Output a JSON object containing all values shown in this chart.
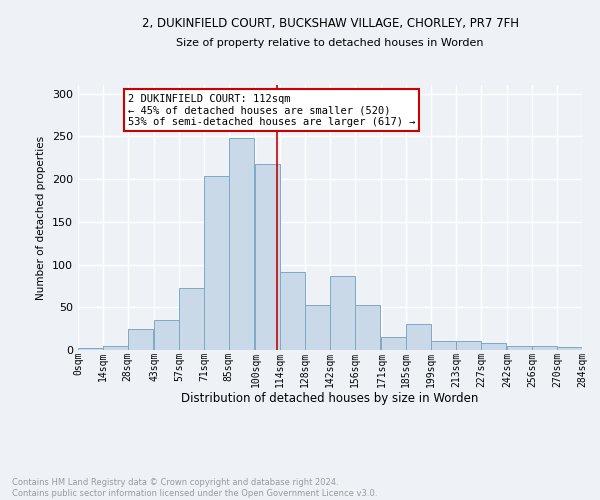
{
  "title_line1": "2, DUKINFIELD COURT, BUCKSHAW VILLAGE, CHORLEY, PR7 7FH",
  "title_line2": "Size of property relative to detached houses in Worden",
  "xlabel": "Distribution of detached houses by size in Worden",
  "ylabel": "Number of detached properties",
  "bar_labels": [
    "0sqm",
    "14sqm",
    "28sqm",
    "43sqm",
    "57sqm",
    "71sqm",
    "85sqm",
    "100sqm",
    "114sqm",
    "128sqm",
    "142sqm",
    "156sqm",
    "171sqm",
    "185sqm",
    "199sqm",
    "213sqm",
    "227sqm",
    "242sqm",
    "256sqm",
    "270sqm",
    "284sqm"
  ],
  "bar_heights": [
    2,
    5,
    25,
    35,
    73,
    203,
    248,
    218,
    91,
    53,
    86,
    53,
    15,
    30,
    11,
    11,
    8,
    5,
    5,
    4
  ],
  "bar_color": "#c9d9e8",
  "bar_edge_color": "#7aaac8",
  "vline_x": 112,
  "vline_color": "#cc0000",
  "annotation_text": "2 DUKINFIELD COURT: 112sqm\n← 45% of detached houses are smaller (520)\n53% of semi-detached houses are larger (617) →",
  "annotation_box_color": "#ffffff",
  "annotation_box_edge_color": "#cc0000",
  "ylim": [
    0,
    310
  ],
  "yticks": [
    0,
    50,
    100,
    150,
    200,
    250,
    300
  ],
  "footnote": "Contains HM Land Registry data © Crown copyright and database right 2024.\nContains public sector information licensed under the Open Government Licence v3.0.",
  "footnote_color": "#999999",
  "background_color": "#eef2f7",
  "grid_color": "#ffffff",
  "bin_width": 14
}
